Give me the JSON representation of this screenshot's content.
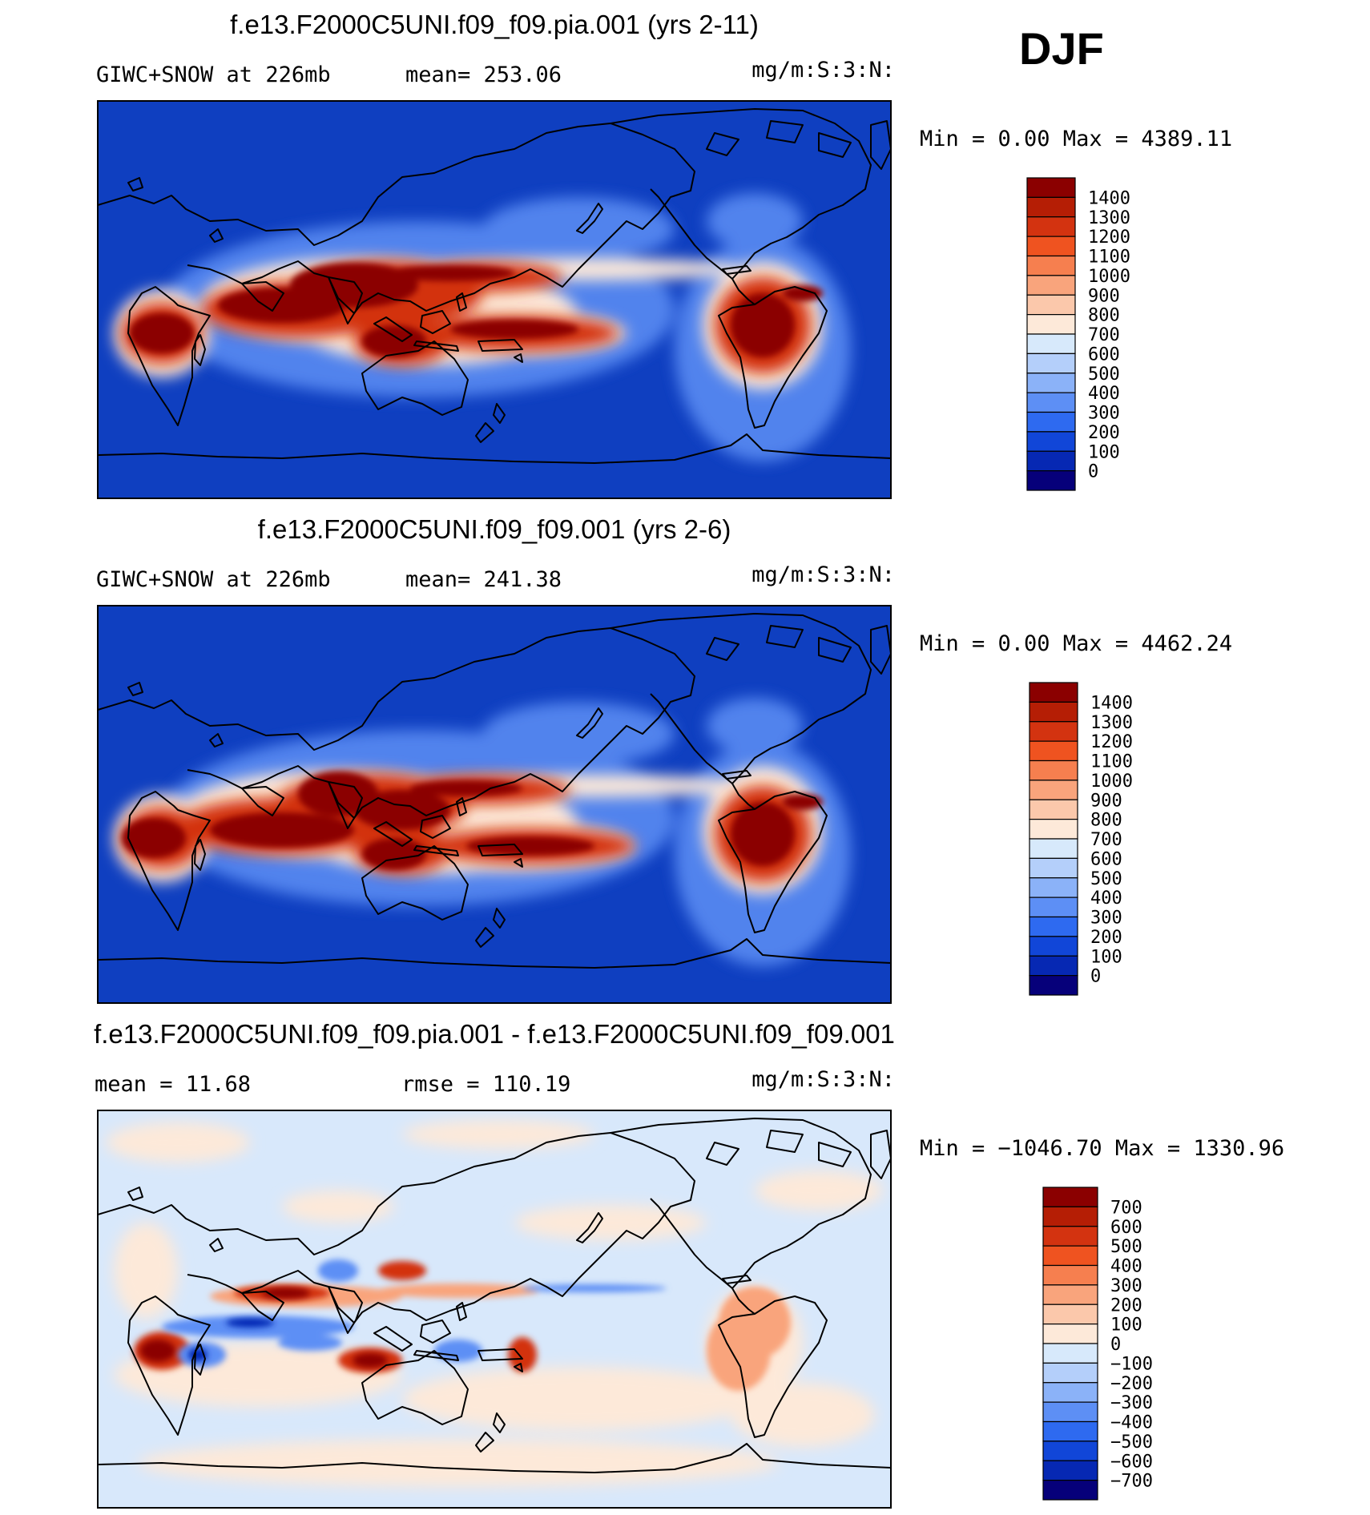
{
  "season": "DJF",
  "colors": {
    "ocean_base": "#0f3fc0",
    "diff_base": "#d8e8fb",
    "coast": "#000000"
  },
  "panels": [
    {
      "title": "f.e13.F2000C5UNI.f09_f09.pia.001 (yrs 2-11)",
      "left_label": "GIWC+SNOW at 226mb",
      "mid_label": "mean= 253.06",
      "units": "mg/m:S:3:N:",
      "minmax": "Min =     0.00 Max =  4389.11"
    },
    {
      "title": "f.e13.F2000C5UNI.f09_f09.001 (yrs 2-6)",
      "left_label": "GIWC+SNOW at 226mb",
      "mid_label": "mean= 241.38",
      "units": "mg/m:S:3:N:",
      "minmax": "Min =     0.00 Max =  4462.24"
    },
    {
      "title": "f.e13.F2000C5UNI.f09_f09.pia.001 - f.e13.F2000C5UNI.f09_f09.001",
      "left_label": "mean =   11.68",
      "mid_label": "rmse =  110.19",
      "units": "mg/m:S:3:N:",
      "minmax": "Min = −1046.70 Max =  1330.96"
    }
  ],
  "chart_data": [
    {
      "type": "heatmap",
      "title": "f.e13.F2000C5UNI.f09_f09.pia.001 (yrs 2-11)",
      "variable": "GIWC+SNOW at 226mb",
      "mean": 253.06,
      "min": 0.0,
      "max": 4389.11,
      "units": "mg/m:S:3:N:",
      "colorbar": {
        "labels": [
          "1400",
          "1300",
          "1200",
          "1100",
          "1000",
          "900",
          "800",
          "700",
          "600",
          "500",
          "400",
          "300",
          "200",
          "100",
          "0"
        ],
        "colors": [
          "#8b0000",
          "#b51e05",
          "#d33310",
          "#ef5320",
          "#f67f4f",
          "#f9a47c",
          "#fbc8ab",
          "#fde9d9",
          "#d7e9fb",
          "#b4cffa",
          "#8bb2f8",
          "#5d8ff5",
          "#2e6af0",
          "#1146d8",
          "#0628b3",
          "#06007a"
        ]
      },
      "high_regions": [
        "southern Africa",
        "Indian Ocean / Maritime Continent",
        "western Pacific ITCZ",
        "South Pacific Convergence Zone",
        "northern Australia",
        "tropical South America"
      ]
    },
    {
      "type": "heatmap",
      "title": "f.e13.F2000C5UNI.f09_f09.001 (yrs 2-6)",
      "variable": "GIWC+SNOW at 226mb",
      "mean": 241.38,
      "min": 0.0,
      "max": 4462.24,
      "units": "mg/m:S:3:N:",
      "colorbar": {
        "labels": [
          "1400",
          "1300",
          "1200",
          "1100",
          "1000",
          "900",
          "800",
          "700",
          "600",
          "500",
          "400",
          "300",
          "200",
          "100",
          "0"
        ],
        "colors": [
          "#8b0000",
          "#b51e05",
          "#d33310",
          "#ef5320",
          "#f67f4f",
          "#f9a47c",
          "#fbc8ab",
          "#fde9d9",
          "#d7e9fb",
          "#b4cffa",
          "#8bb2f8",
          "#5d8ff5",
          "#2e6af0",
          "#1146d8",
          "#0628b3",
          "#06007a"
        ]
      },
      "high_regions": [
        "southern Africa",
        "Indian Ocean / Maritime Continent",
        "western Pacific ITCZ",
        "South Pacific Convergence Zone",
        "northern Australia",
        "tropical South America"
      ]
    },
    {
      "type": "heatmap",
      "title": "f.e13.F2000C5UNI.f09_f09.pia.001 - f.e13.F2000C5UNI.f09_f09.001",
      "mean": 11.68,
      "rmse": 110.19,
      "min": -1046.7,
      "max": 1330.96,
      "units": "mg/m:S:3:N:",
      "colorbar": {
        "labels": [
          "700",
          "600",
          "500",
          "400",
          "300",
          "200",
          "100",
          "0",
          "−100",
          "−200",
          "−300",
          "−400",
          "−500",
          "−600",
          "−700"
        ],
        "colors": [
          "#8b0000",
          "#b51e05",
          "#d33310",
          "#ef5320",
          "#f67f4f",
          "#f9a47c",
          "#fbc8ab",
          "#fde9d9",
          "#d7e9fb",
          "#b4cffa",
          "#8bb2f8",
          "#5d8ff5",
          "#2e6af0",
          "#1146d8",
          "#0628b3",
          "#06007a"
        ]
      }
    }
  ]
}
